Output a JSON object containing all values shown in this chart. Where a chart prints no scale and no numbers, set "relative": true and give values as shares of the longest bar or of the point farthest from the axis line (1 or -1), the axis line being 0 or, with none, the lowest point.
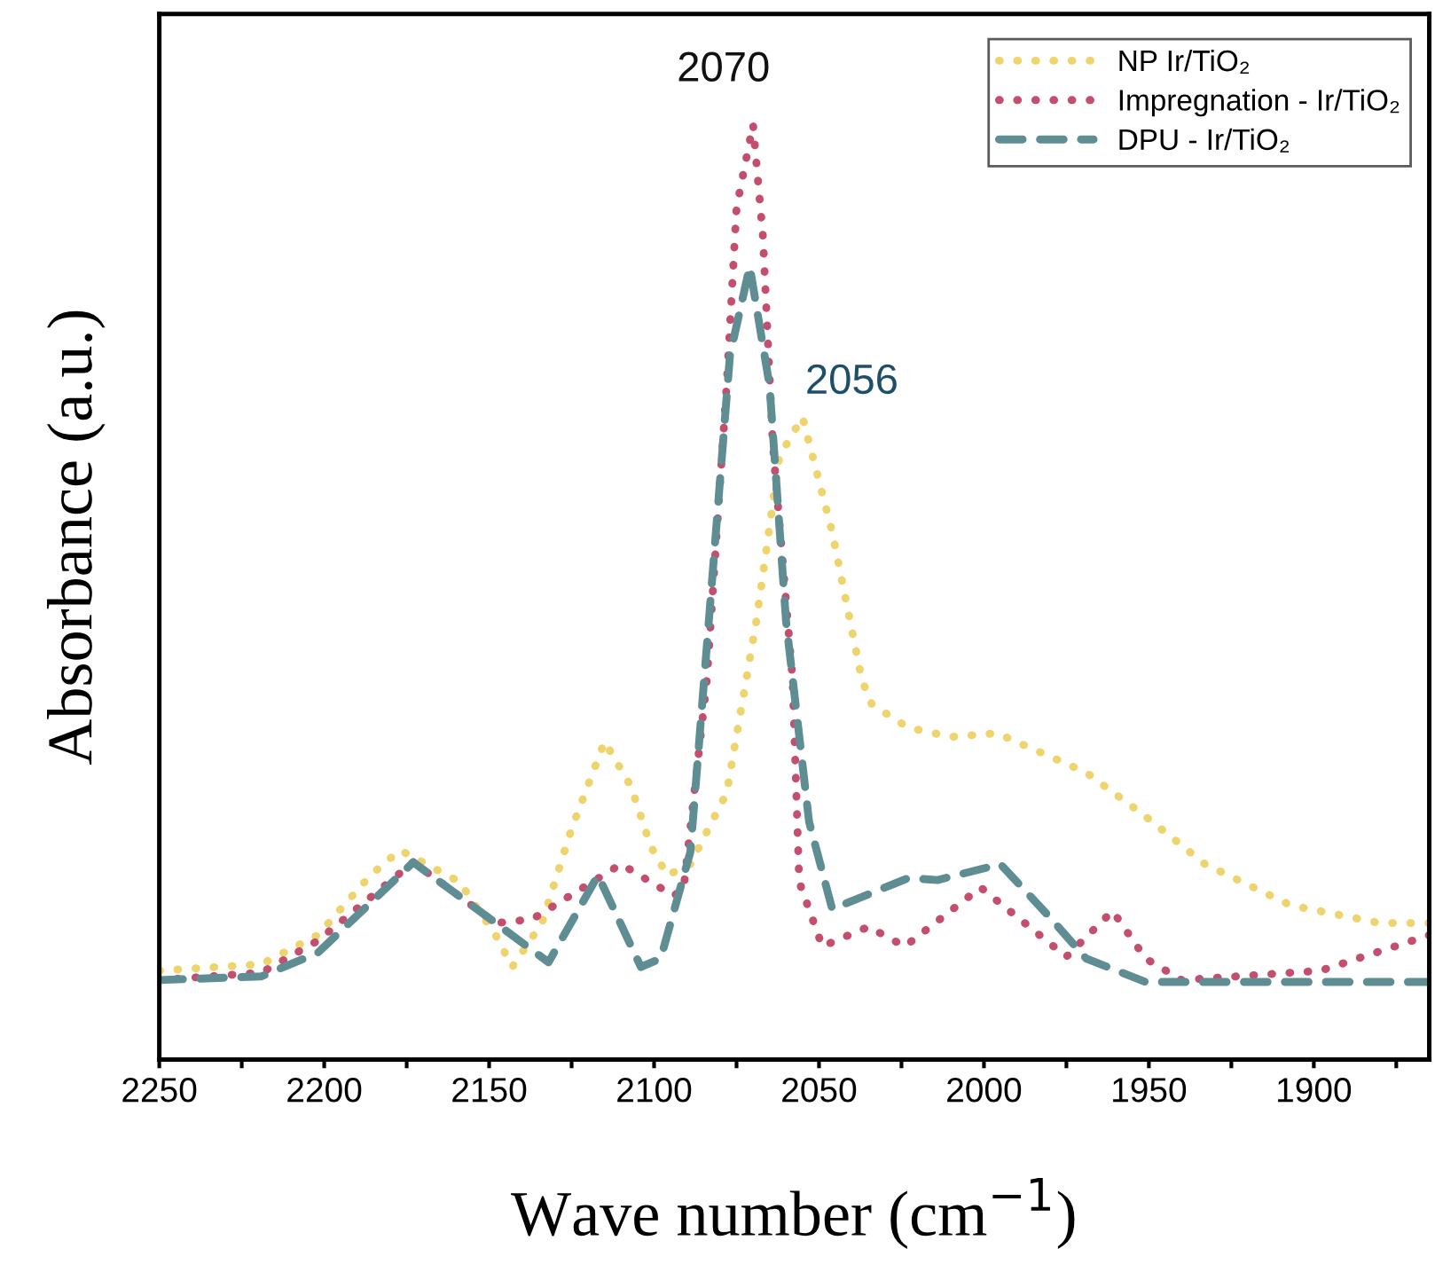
{
  "chart_data": {
    "type": "line",
    "relative": true,
    "xlabel": "Wave number (cm$^{−1}$)",
    "ylabel": "Absorbance (a.u.)",
    "xlim": [
      2250,
      1865
    ],
    "xticks": [
      2250,
      {
        "value": 2225,
        "label": null
      },
      2200,
      {
        "value": 2175,
        "label": null
      },
      2150,
      {
        "value": 2125,
        "label": null
      },
      2100,
      {
        "value": 2075,
        "label": null
      },
      2050,
      {
        "value": 2025,
        "label": null
      },
      2000,
      {
        "value": 1975,
        "label": null
      },
      1950,
      {
        "value": 1925,
        "label": null
      },
      1900,
      {
        "value": 1875,
        "label": null
      }
    ],
    "legend": "top right",
    "grid": false,
    "annotations": [
      {
        "text": "2070",
        "x": 2070,
        "y": 1.0
      },
      {
        "text": "2056",
        "x": 2055,
        "y": 0.687
      }
    ],
    "series": [
      {
        "name": "NP Ir/TiO₂",
        "color": "#efd46e",
        "line_style": "dotted",
        "x": [
          2250,
          2219,
          2202,
          2186,
          2177,
          2159,
          2148,
          2143,
          2134,
          2125,
          2115,
          2107,
          2101,
          2096,
          2089,
          2078,
          2069,
          2062,
          2055,
          2046,
          2037,
          2034,
          2023,
          2010,
          1996,
          1969,
          1951,
          1933,
          1907,
          1880,
          1865
        ],
        "values": [
          0.095,
          0.102,
          0.133,
          0.197,
          0.224,
          0.19,
          0.133,
          0.099,
          0.146,
          0.247,
          0.34,
          0.292,
          0.228,
          0.197,
          0.209,
          0.285,
          0.469,
          0.645,
          0.687,
          0.564,
          0.406,
          0.38,
          0.355,
          0.345,
          0.349,
          0.307,
          0.26,
          0.209,
          0.165,
          0.146,
          0.146
        ]
      },
      {
        "name": "Impregnation - Ir/TiO₂",
        "color": "#c44e6e",
        "line_style": "dotted",
        "x": [
          2250,
          2219,
          2202,
          2173,
          2148,
          2137,
          2110,
          2094,
          2091,
          2084,
          2078,
          2075,
          2070,
          2067,
          2064,
          2058,
          2056,
          2049,
          2035,
          2024,
          2001,
          1975,
          1961,
          1951,
          1940,
          1898,
          1865
        ],
        "values": [
          0.085,
          0.093,
          0.127,
          0.211,
          0.146,
          0.15,
          0.209,
          0.175,
          0.184,
          0.406,
          0.721,
          0.911,
          1.0,
          0.88,
          0.658,
          0.406,
          0.19,
          0.121,
          0.142,
          0.121,
          0.184,
          0.11,
          0.159,
          0.108,
          0.085,
          0.095,
          0.133
        ]
      },
      {
        "name": "DPU - Ir/TiO₂",
        "color": "#5f8d94",
        "line_style": "dashed",
        "x": [
          2250,
          2219,
          2202,
          2173,
          2148,
          2132,
          2117,
          2104,
          2098,
          2089,
          2082,
          2077,
          2071,
          2065,
          2060,
          2053,
          2046,
          2023,
          2014,
          1995,
          1980,
          1969,
          1951,
          1865
        ],
        "values": [
          0.085,
          0.089,
          0.114,
          0.211,
          0.146,
          0.104,
          0.197,
          0.099,
          0.108,
          0.222,
          0.531,
          0.753,
          0.848,
          0.721,
          0.469,
          0.254,
          0.161,
          0.194,
          0.192,
          0.209,
          0.152,
          0.108,
          0.083,
          0.083
        ]
      }
    ]
  }
}
